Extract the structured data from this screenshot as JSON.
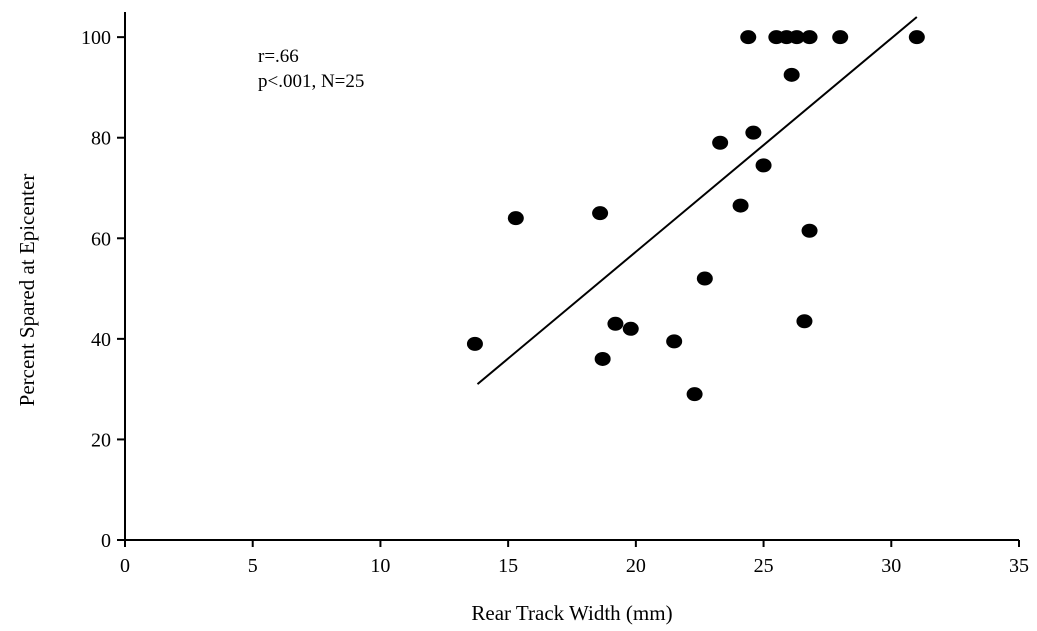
{
  "chart_data": {
    "type": "scatter",
    "title": "",
    "xlabel": "Rear Track Width (mm)",
    "ylabel": "Percent Spared at Epicenter",
    "xlim": [
      0,
      35
    ],
    "ylim": [
      0,
      105
    ],
    "xticks": [
      0,
      5,
      10,
      15,
      20,
      25,
      30,
      35
    ],
    "yticks": [
      0,
      20,
      40,
      60,
      80,
      100
    ],
    "grid": false,
    "legend": "none",
    "annotations": [
      "r=.66",
      "p<.001, N=25"
    ],
    "series": [
      {
        "points": [
          {
            "x": 13.7,
            "y": 39
          },
          {
            "x": 15.3,
            "y": 64
          },
          {
            "x": 18.6,
            "y": 65
          },
          {
            "x": 18.7,
            "y": 36
          },
          {
            "x": 19.2,
            "y": 43
          },
          {
            "x": 19.8,
            "y": 42
          },
          {
            "x": 21.5,
            "y": 39.5
          },
          {
            "x": 22.3,
            "y": 29
          },
          {
            "x": 22.7,
            "y": 52
          },
          {
            "x": 23.3,
            "y": 79
          },
          {
            "x": 24.1,
            "y": 66.5
          },
          {
            "x": 24.4,
            "y": 100
          },
          {
            "x": 24.6,
            "y": 81
          },
          {
            "x": 25.0,
            "y": 74.5
          },
          {
            "x": 25.5,
            "y": 100
          },
          {
            "x": 25.9,
            "y": 100
          },
          {
            "x": 26.1,
            "y": 92.5
          },
          {
            "x": 26.3,
            "y": 100
          },
          {
            "x": 26.6,
            "y": 43.5
          },
          {
            "x": 26.8,
            "y": 100
          },
          {
            "x": 26.8,
            "y": 61.5
          },
          {
            "x": 28.0,
            "y": 100
          },
          {
            "x": 31.0,
            "y": 100
          }
        ]
      }
    ],
    "trendline": {
      "x1": 13.8,
      "y1": 31,
      "x2": 31.0,
      "y2": 104
    }
  }
}
